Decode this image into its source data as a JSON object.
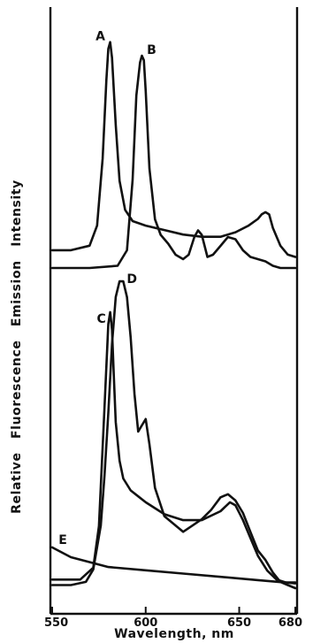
{
  "chart_data": {
    "type": "line",
    "title": "",
    "xlabel": "Wavelength, nm",
    "ylabel": "Relative Fluorescence Emission Intensity",
    "xlim": [
      550,
      680
    ],
    "xticks": [
      550,
      600,
      650,
      680
    ],
    "grid": false,
    "y_scale": "relative (unitless), panel offsets",
    "panels": [
      {
        "name": "upper",
        "series": [
          {
            "name": "A",
            "x": [
              550,
              560,
              570,
              574,
              577,
              579,
              580,
              581,
              582,
              584,
              586,
              589,
              593,
              600,
              610,
              620,
              630,
              640,
              648,
              655,
              660,
              662,
              664,
              666,
              668,
              672,
              676,
              680
            ],
            "y": [
              0.04,
              0.04,
              0.06,
              0.15,
              0.45,
              0.8,
              0.94,
              0.97,
              0.9,
              0.6,
              0.35,
              0.22,
              0.17,
              0.15,
              0.13,
              0.11,
              0.1,
              0.1,
              0.12,
              0.15,
              0.18,
              0.2,
              0.21,
              0.2,
              0.14,
              0.06,
              0.02,
              0.01
            ]
          },
          {
            "name": "B",
            "x": [
              550,
              570,
              585,
              590,
              593,
              595,
              597,
              598,
              599,
              600,
              602,
              605,
              608,
              612,
              616,
              620,
              623,
              626,
              628,
              630,
              633,
              636,
              640,
              644,
              648,
              652,
              656,
              660,
              664,
              668,
              672,
              676,
              680
            ],
            "y": [
              0.0,
              0.0,
              0.01,
              0.08,
              0.4,
              0.78,
              0.93,
              0.96,
              0.94,
              0.8,
              0.45,
              0.22,
              0.15,
              0.11,
              0.06,
              0.04,
              0.06,
              0.14,
              0.17,
              0.15,
              0.05,
              0.06,
              0.1,
              0.14,
              0.13,
              0.08,
              0.05,
              0.04,
              0.03,
              0.01,
              0.0,
              0.0,
              0.0
            ]
          }
        ]
      },
      {
        "name": "lower",
        "series": [
          {
            "name": "C",
            "x": [
              550,
              565,
              572,
              575,
              578,
              580,
              581,
              582,
              583,
              584,
              586,
              588,
              592,
              596,
              600,
              610,
              620,
              630,
              640,
              645,
              648,
              652,
              656,
              660,
              665,
              670,
              675,
              680
            ],
            "y": [
              0.02,
              0.02,
              0.06,
              0.2,
              0.6,
              0.88,
              0.92,
              0.86,
              0.7,
              0.55,
              0.42,
              0.36,
              0.32,
              0.3,
              0.28,
              0.24,
              0.22,
              0.22,
              0.25,
              0.28,
              0.27,
              0.22,
              0.16,
              0.1,
              0.05,
              0.02,
              0.01,
              0.01
            ]
          },
          {
            "name": "D",
            "x": [
              550,
              560,
              568,
              572,
              576,
              578,
              580,
              582,
              584,
              586,
              588,
              590,
              592,
              594,
              596,
              598,
              600,
              602,
              605,
              610,
              620,
              625,
              630,
              635,
              640,
              644,
              648,
              652,
              656,
              660,
              664,
              668,
              672,
              676,
              680
            ],
            "y": [
              0.01,
              0.01,
              0.02,
              0.06,
              0.2,
              0.36,
              0.56,
              0.78,
              0.93,
              0.98,
              0.98,
              0.93,
              0.8,
              0.62,
              0.5,
              0.52,
              0.54,
              0.46,
              0.32,
              0.23,
              0.18,
              0.2,
              0.22,
              0.25,
              0.29,
              0.3,
              0.28,
              0.24,
              0.18,
              0.12,
              0.09,
              0.05,
              0.02,
              0.01,
              0.0
            ]
          },
          {
            "name": "E",
            "x": [
              550,
              560,
              580,
              600,
              620,
              640,
              660,
              680
            ],
            "y": [
              0.13,
              0.1,
              0.07,
              0.06,
              0.05,
              0.04,
              0.03,
              0.02
            ]
          }
        ]
      }
    ]
  }
}
